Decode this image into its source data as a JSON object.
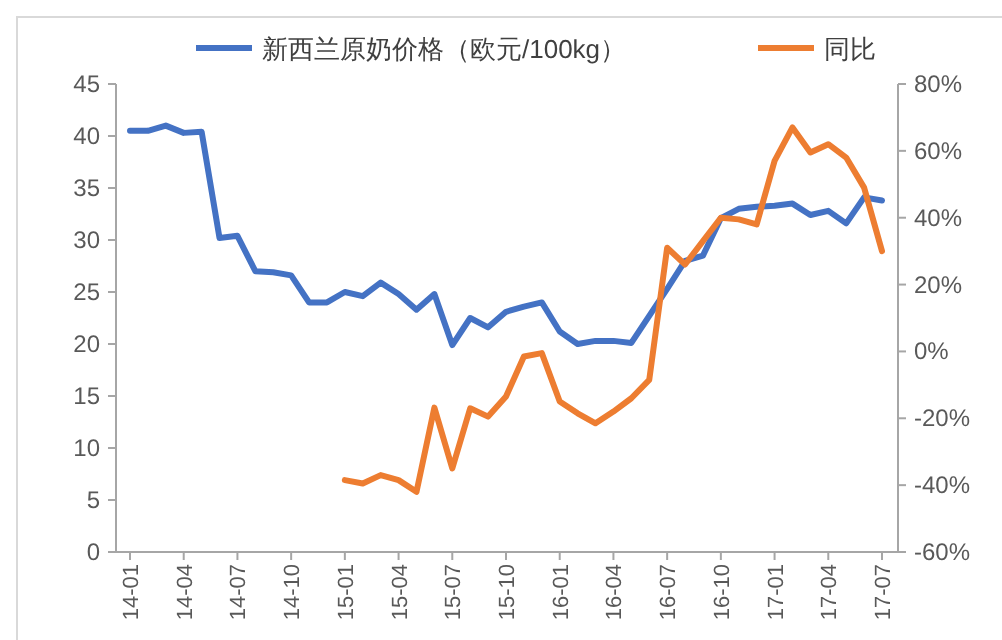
{
  "chart_data": {
    "type": "line",
    "categories": [
      "14-01",
      null,
      null,
      "14-04",
      null,
      null,
      "14-07",
      null,
      null,
      "14-10",
      null,
      null,
      "15-01",
      null,
      null,
      "15-04",
      null,
      null,
      "15-07",
      null,
      null,
      "15-10",
      null,
      null,
      "16-01",
      null,
      null,
      "16-04",
      null,
      null,
      "16-07",
      null,
      null,
      "16-10",
      null,
      null,
      "17-01",
      null,
      null,
      "17-04",
      null,
      null,
      "17-07"
    ],
    "series": [
      {
        "name": "新西兰原奶价格（欧元/100kg）",
        "color": "#4472c4",
        "values": [
          40.5,
          40.5,
          41,
          40.3,
          40.4,
          30.2,
          30.4,
          27,
          26.9,
          26.6,
          24,
          24,
          25,
          24.6,
          25.9,
          24.8,
          23.3,
          24.8,
          19.9,
          22.5,
          21.6,
          23.1,
          23.6,
          24,
          21.2,
          20,
          20.3,
          20.3,
          20.1,
          22.7,
          25.3,
          28,
          28.5,
          32.1,
          33,
          33.2,
          33.3,
          33.5,
          32.4,
          32.8,
          31.6,
          34.1,
          33.8
        ]
      },
      {
        "name": "同比",
        "color": "#ed7d31",
        "axis": "y2",
        "values": [
          null,
          null,
          null,
          null,
          null,
          null,
          null,
          null,
          null,
          null,
          null,
          null,
          -38.5,
          -39.5,
          -37,
          -38.5,
          -42,
          -16.8,
          -35,
          -17,
          -19.5,
          -13.5,
          -1.5,
          -0.5,
          -15,
          -18.5,
          -21.5,
          -18,
          -14,
          -8.5,
          31,
          26,
          33,
          40,
          39.5,
          38,
          57,
          67,
          59.5,
          62,
          58,
          49,
          30
        ]
      }
    ],
    "ylim": [
      0,
      45
    ],
    "yticks": [
      0,
      5,
      10,
      15,
      20,
      25,
      30,
      35,
      40,
      45
    ],
    "y2lim": [
      -60,
      80
    ],
    "y2ticks": [
      {
        "value": -60,
        "label": "-60%"
      },
      {
        "value": -40,
        "label": "-40%"
      },
      {
        "value": -20,
        "label": "-20%"
      },
      {
        "value": 0,
        "label": "0%"
      },
      {
        "value": 20,
        "label": "20%"
      },
      {
        "value": 40,
        "label": "40%"
      },
      {
        "value": 60,
        "label": "60%"
      },
      {
        "value": 80,
        "label": "80%"
      }
    ],
    "legend": "top",
    "grid": false,
    "marker": "none",
    "line_style": "solid"
  }
}
